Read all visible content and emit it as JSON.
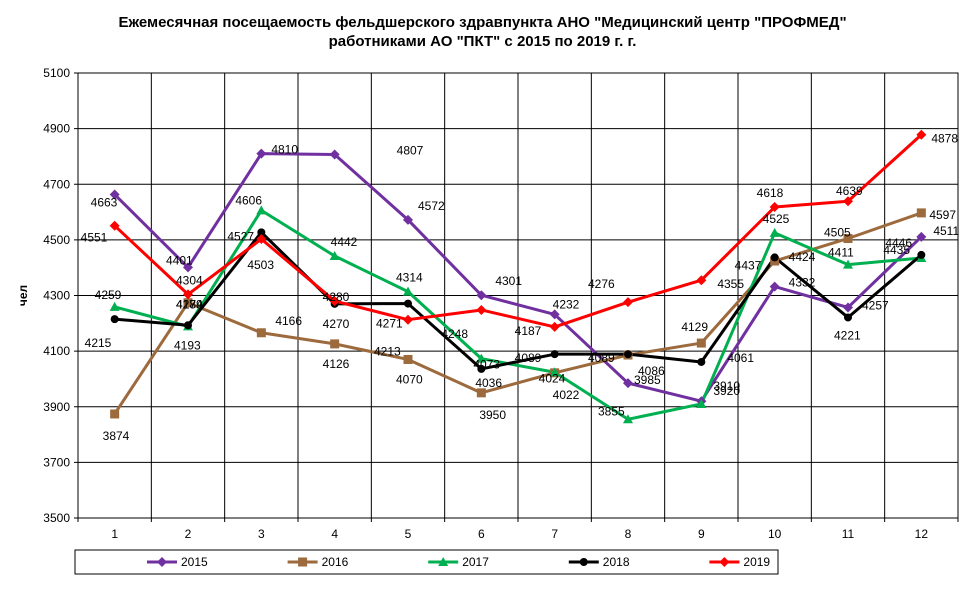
{
  "chart_data": {
    "type": "line",
    "title": [
      "Ежемесячная посещаемость фельдшерского здравпункта АНО \"Медицинский центр \"ПРОФМЕД\"",
      "работниками АО \"ПКТ\" с 2015 по 2019 г. г."
    ],
    "xlabel": "",
    "ylabel": "чел",
    "categories": [
      "1",
      "2",
      "3",
      "4",
      "5",
      "6",
      "7",
      "8",
      "9",
      "10",
      "11",
      "12"
    ],
    "ylim": [
      3500,
      5100
    ],
    "yticks": [
      3500,
      3700,
      3900,
      4100,
      4300,
      4500,
      4700,
      4900,
      5100
    ],
    "grid": true,
    "legend_position": "bottom",
    "series": [
      {
        "name": "2015",
        "color": "#7030a0",
        "marker": "diamond",
        "values": [
          4663,
          4401,
          4810,
          4807,
          4572,
          4301,
          4232,
          3985,
          3920,
          4332,
          4257,
          4511
        ]
      },
      {
        "name": "2016",
        "color": "#9c6a3c",
        "marker": "square",
        "values": [
          3874,
          4274,
          4166,
          4126,
          4070,
          3950,
          4022,
          4086,
          4129,
          4424,
          4505,
          4597
        ]
      },
      {
        "name": "2017",
        "color": "#00b050",
        "marker": "triangle",
        "values": [
          4259,
          4189,
          4606,
          4442,
          4314,
          4073,
          4024,
          3855,
          3910,
          4525,
          4411,
          4435
        ]
      },
      {
        "name": "2018",
        "color": "#000000",
        "marker": "circle",
        "values": [
          4215,
          4193,
          4527,
          4270,
          4271,
          4036,
          4089,
          4089,
          4061,
          4437,
          4221,
          4446
        ]
      },
      {
        "name": "2019",
        "color": "#ff0000",
        "marker": "diamond",
        "values": [
          4551,
          4304,
          4503,
          4280,
          4213,
          4248,
          4187,
          4276,
          4355,
          4618,
          4639,
          4878
        ]
      }
    ]
  }
}
